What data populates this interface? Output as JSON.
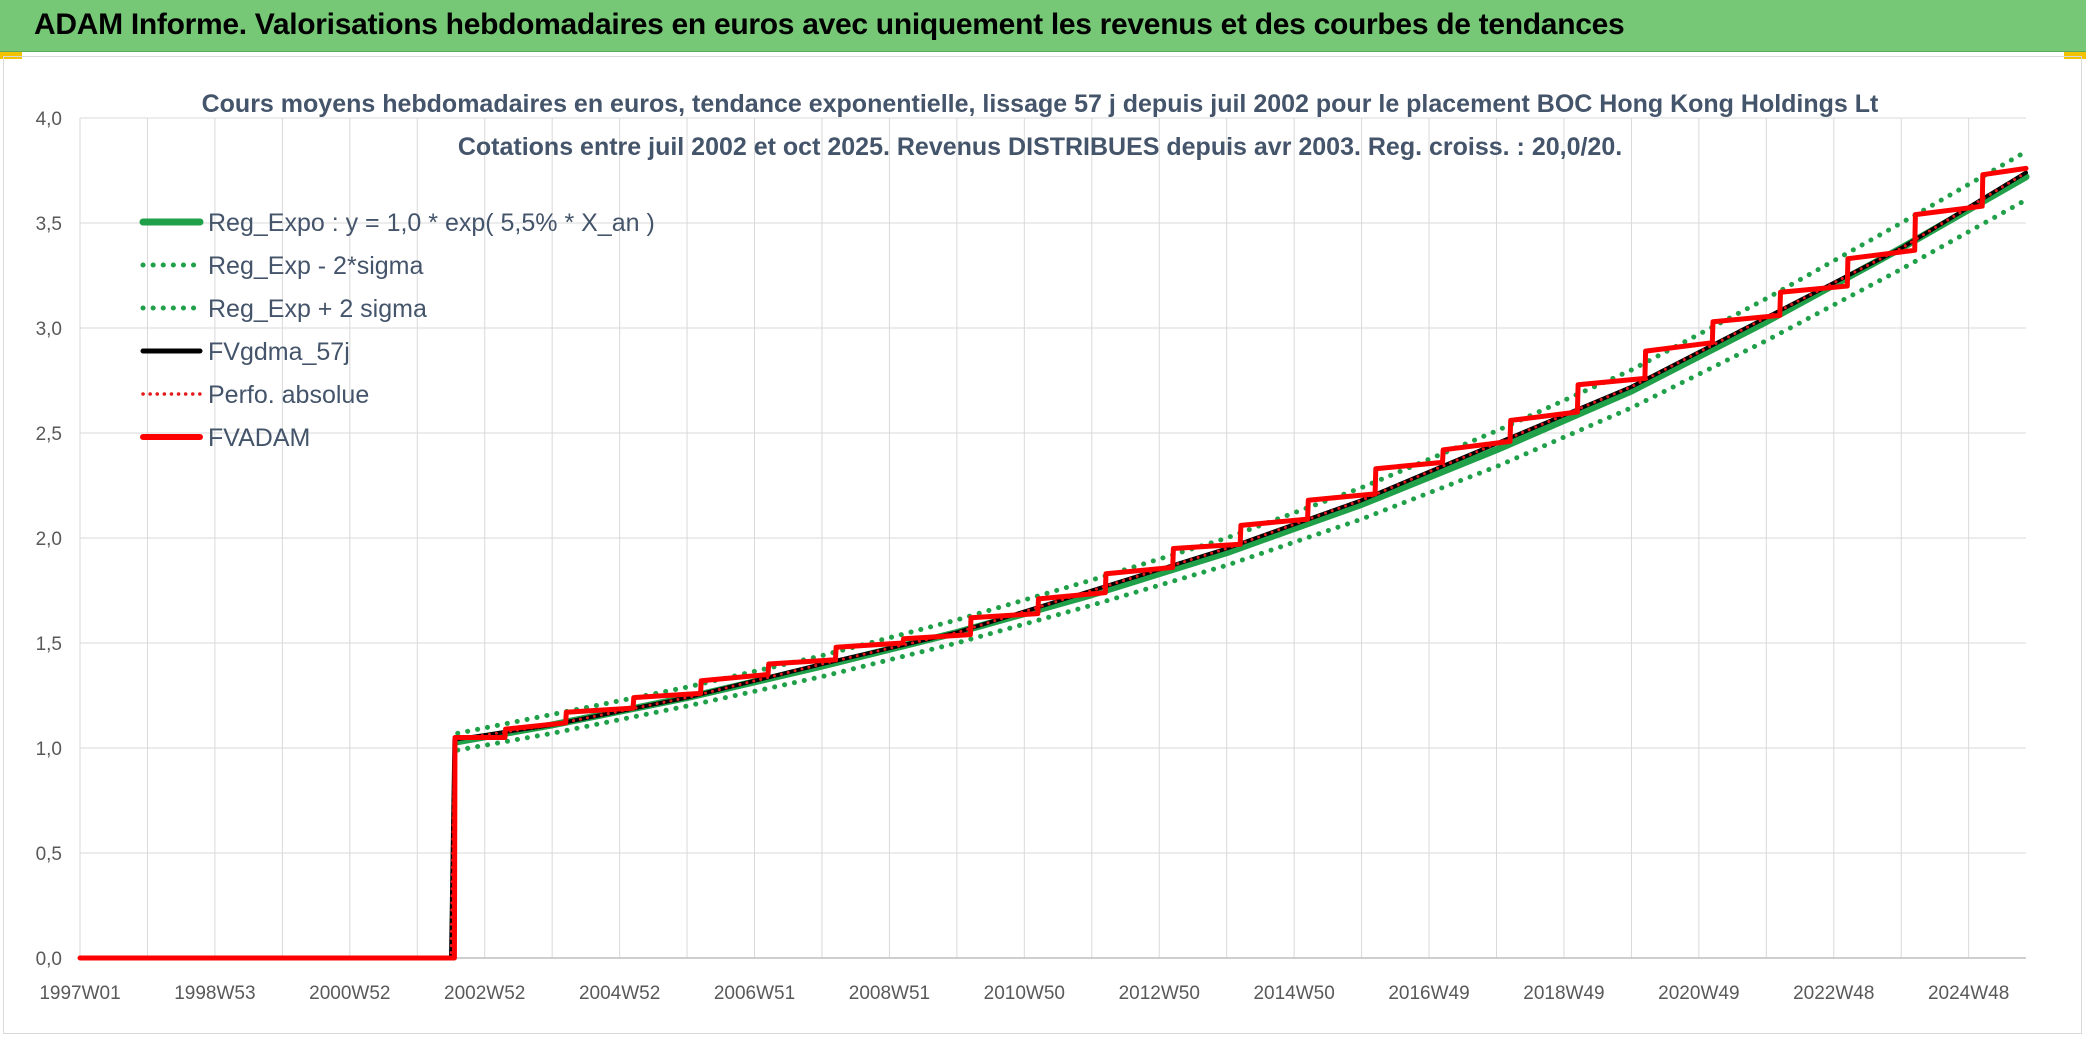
{
  "banner": {
    "title": "ADAM Informe. Valorisations hebdomadaires en euros avec uniquement les revenus et des courbes de tendances",
    "background": "#76c776"
  },
  "chart_data": {
    "type": "line",
    "title": "Cours moyens hebdomadaires en euros, tendance exponentielle, lissage 57 j depuis juil 2002 pour le placement BOC Hong Kong Holdings Lt",
    "subtitle": "Cotations entre juil 2002 et oct 2025. Revenus DISTRIBUES depuis avr 2003. Reg. croiss. : 20,0/20.",
    "xlabel": "",
    "ylabel": "",
    "x_ticks": [
      "1997W01",
      "1998W53",
      "2000W52",
      "2002W52",
      "2004W52",
      "2006W51",
      "2008W51",
      "2010W50",
      "2012W50",
      "2014W50",
      "2016W49",
      "2018W49",
      "2020W49",
      "2022W48",
      "2024W48"
    ],
    "x_tick_years": [
      1997.0,
      1999.0,
      2001.0,
      2003.0,
      2005.0,
      2007.0,
      2009.0,
      2011.0,
      2013.0,
      2015.0,
      2017.0,
      2019.0,
      2021.0,
      2023.0,
      2025.0
    ],
    "xlim": [
      1997.0,
      2025.85
    ],
    "ylim": [
      0,
      4
    ],
    "y_ticks": [
      "0,0",
      "0,5",
      "1,0",
      "1,5",
      "2,0",
      "2,5",
      "3,0",
      "3,5",
      "4,0"
    ],
    "y_tick_values": [
      0,
      0.5,
      1.0,
      1.5,
      2.0,
      2.5,
      3.0,
      3.5,
      4.0
    ],
    "grid": true,
    "legend_position": "top-left",
    "regression_label": "Reg_Expo : y = 1,0 * exp( 5,5% *  X_an )",
    "series": [
      {
        "name": "Reg_Expo : y = 1,0 * exp( 5,5% *  X_an )",
        "color": "#21a04a",
        "style": "solid",
        "x": [
          2002.6,
          2004,
          2006,
          2008,
          2010,
          2012,
          2014,
          2016,
          2018,
          2020,
          2022,
          2024,
          2025.85
        ],
        "y": [
          1.03,
          1.11,
          1.24,
          1.39,
          1.55,
          1.73,
          1.93,
          2.16,
          2.42,
          2.7,
          3.03,
          3.38,
          3.72
        ]
      },
      {
        "name": "Reg_Exp - 2*sigma",
        "color": "#21a04a",
        "style": "dotted",
        "x": [
          2002.6,
          2004,
          2006,
          2008,
          2010,
          2012,
          2014,
          2016,
          2018,
          2020,
          2022,
          2024,
          2025.85
        ],
        "y": [
          0.99,
          1.07,
          1.2,
          1.34,
          1.5,
          1.68,
          1.87,
          2.09,
          2.34,
          2.62,
          2.94,
          3.28,
          3.61
        ]
      },
      {
        "name": "Reg_Exp + 2 sigma",
        "color": "#21a04a",
        "style": "dotted",
        "x": [
          2002.6,
          2004,
          2006,
          2008,
          2010,
          2012,
          2014,
          2016,
          2018,
          2020,
          2022,
          2024,
          2025.85
        ],
        "y": [
          1.07,
          1.16,
          1.29,
          1.44,
          1.61,
          1.8,
          2.0,
          2.24,
          2.51,
          2.8,
          3.14,
          3.5,
          3.84
        ]
      },
      {
        "name": "FVgdma_57j",
        "color": "#000000",
        "style": "solid",
        "x": [
          1997.0,
          2002.5,
          2002.55,
          2004.0,
          2006.0,
          2008.0,
          2010.0,
          2012.0,
          2014.0,
          2016.0,
          2018.0,
          2020.0,
          2022.0,
          2024.0,
          2025.85
        ],
        "y": [
          0.0,
          0.0,
          1.04,
          1.11,
          1.24,
          1.4,
          1.55,
          1.75,
          1.95,
          2.18,
          2.45,
          2.72,
          3.05,
          3.38,
          3.74
        ]
      },
      {
        "name": "Perfo. absolue",
        "color": "#e31a1c",
        "style": "dotted",
        "x": [
          1997.0,
          2002.5,
          2002.55,
          2004.0,
          2006.0,
          2008.0,
          2010.0,
          2012.0,
          2014.0,
          2016.0,
          2018.0,
          2020.0,
          2022.0,
          2024.0,
          2025.85
        ],
        "y": [
          0.0,
          0.0,
          1.04,
          1.11,
          1.24,
          1.4,
          1.55,
          1.75,
          1.95,
          2.18,
          2.45,
          2.72,
          3.05,
          3.38,
          3.74
        ]
      },
      {
        "name": "FVADAM",
        "color": "#ff0000",
        "style": "solid",
        "x": [
          1997.0,
          2002.55,
          2002.56,
          2003.3,
          2003.31,
          2004.2,
          2004.21,
          2005.2,
          2005.21,
          2006.2,
          2006.21,
          2007.2,
          2007.21,
          2008.2,
          2008.21,
          2009.2,
          2009.21,
          2010.2,
          2010.21,
          2011.2,
          2011.21,
          2012.2,
          2012.21,
          2013.2,
          2013.21,
          2014.2,
          2014.21,
          2015.2,
          2015.21,
          2016.2,
          2016.21,
          2017.2,
          2017.21,
          2018.2,
          2018.21,
          2019.2,
          2019.21,
          2020.2,
          2020.21,
          2021.2,
          2021.21,
          2022.2,
          2022.21,
          2023.2,
          2023.21,
          2024.2,
          2024.21,
          2025.2,
          2025.21,
          2025.85
        ],
        "y": [
          0.0,
          0.0,
          1.05,
          1.05,
          1.09,
          1.12,
          1.17,
          1.19,
          1.24,
          1.26,
          1.32,
          1.35,
          1.4,
          1.42,
          1.48,
          1.5,
          1.52,
          1.54,
          1.62,
          1.64,
          1.71,
          1.74,
          1.83,
          1.86,
          1.95,
          1.97,
          2.06,
          2.09,
          2.18,
          2.21,
          2.33,
          2.36,
          2.42,
          2.46,
          2.56,
          2.6,
          2.73,
          2.76,
          2.89,
          2.93,
          3.03,
          3.06,
          3.17,
          3.2,
          3.33,
          3.37,
          3.54,
          3.58,
          3.73,
          3.76
        ]
      }
    ]
  }
}
